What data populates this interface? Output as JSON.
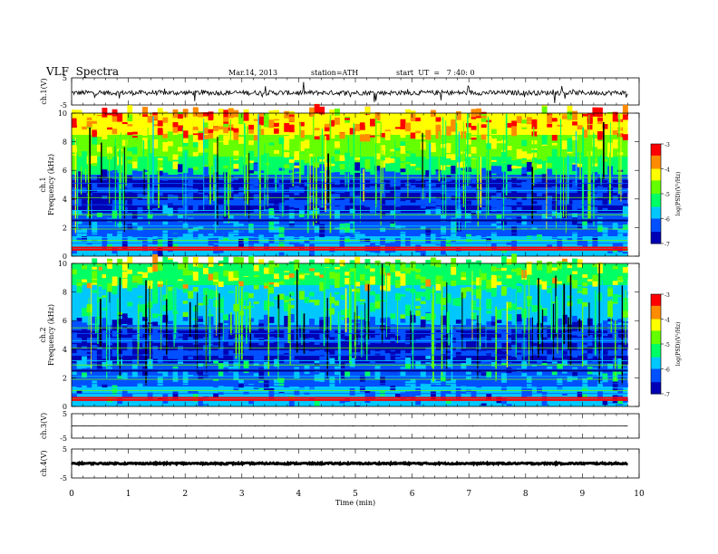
{
  "header": {
    "title": "VLF  Spectra",
    "date": "Mar.14, 2013",
    "station": "station=ATH",
    "start": "start  UT  =   7 :40: 0"
  },
  "chart_data": [
    {
      "type": "line",
      "panel": "ch1-waveform",
      "ylabel": "ch.1(V)",
      "ylim": [
        -5,
        5
      ],
      "yticks": [
        "5",
        "-5"
      ],
      "xlim": [
        0,
        10
      ],
      "baseline": 0,
      "note_values": "noisy waveform around -0.5 V with spikes"
    },
    {
      "type": "heatmap",
      "panel": "ch1-spectrogram",
      "ylabel": "ch.1\nFrequency  (kHz)",
      "ylabel_line1": "ch.1",
      "ylabel_line2": "Frequency  (kHz)",
      "ylim": [
        0,
        10
      ],
      "yticks": [
        "0",
        "2",
        "4",
        "6",
        "8",
        "10"
      ],
      "xlim": [
        0,
        10
      ],
      "colorbar": {
        "label": "log(PSD)(V²/Hz)",
        "ticks": [
          "-3",
          "-4",
          "-5",
          "-6",
          "-7"
        ],
        "range": [
          -7,
          -3
        ]
      }
    },
    {
      "type": "heatmap",
      "panel": "ch2-spectrogram",
      "ylabel_line1": "ch.2",
      "ylabel_line2": "Frequency  (kHz)",
      "ylim": [
        0,
        10
      ],
      "yticks": [
        "0",
        "2",
        "4",
        "6",
        "8",
        "10"
      ],
      "xlim": [
        0,
        10
      ],
      "colorbar": {
        "label": "log(PSD)(V²/Hz)",
        "ticks": [
          "-3",
          "-4",
          "-5",
          "-6",
          "-7"
        ],
        "range": [
          -7,
          -3
        ]
      }
    },
    {
      "type": "line",
      "panel": "ch3-waveform",
      "ylabel": "ch.3(V)",
      "ylim": [
        -5,
        5
      ],
      "yticks": [
        "5",
        "-5"
      ],
      "xlim": [
        0,
        10
      ],
      "baseline": 0
    },
    {
      "type": "line",
      "panel": "ch4-waveform",
      "ylabel": "ch.4(V)",
      "ylim": [
        -5,
        5
      ],
      "yticks": [
        "5",
        "-5"
      ],
      "xlim": [
        0,
        10
      ],
      "baseline": 0
    }
  ],
  "xaxis": {
    "label": "Time  (min)",
    "ticks": [
      "0",
      "1",
      "2",
      "3",
      "4",
      "5",
      "6",
      "7",
      "8",
      "9",
      "10"
    ],
    "data_end": 9.8
  },
  "colormap": [
    "#0000b4",
    "#0050ff",
    "#00c8ff",
    "#00ff64",
    "#64ff00",
    "#ffff00",
    "#ff8c00",
    "#ff0000",
    "#ffffff"
  ]
}
